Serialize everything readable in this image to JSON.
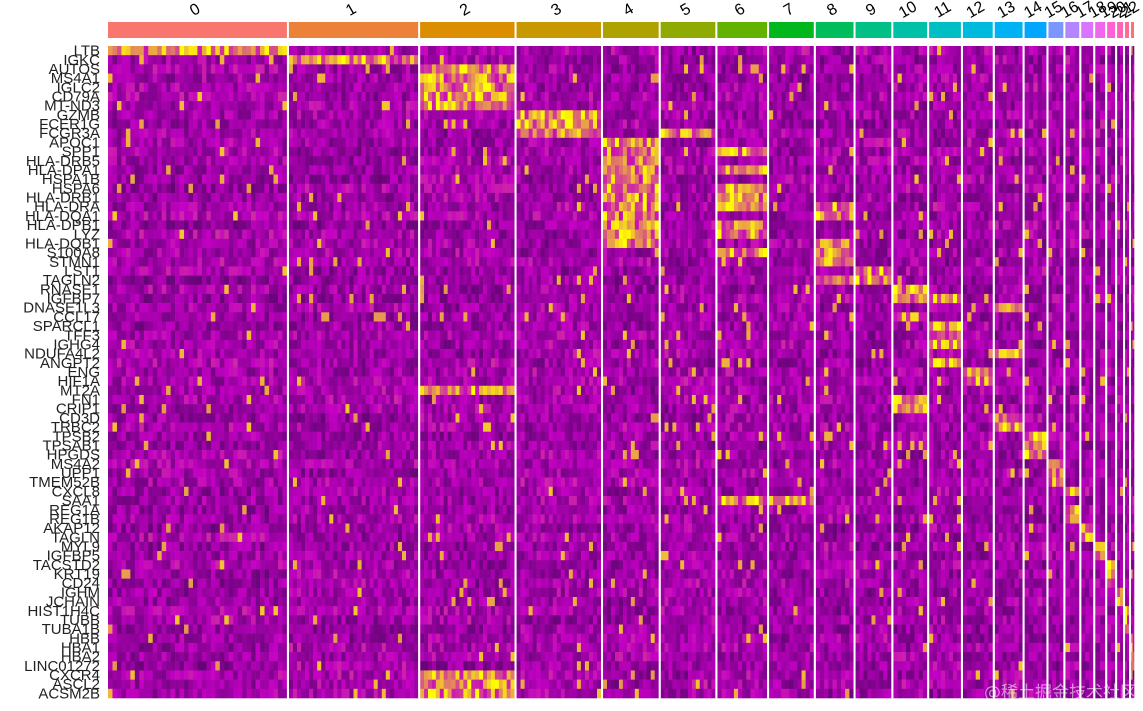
{
  "chart_data": {
    "type": "heatmap",
    "clusters": [
      {
        "label": "0",
        "cells": 180,
        "color": "#F8766D"
      },
      {
        "label": "1",
        "cells": 130,
        "color": "#EC8239"
      },
      {
        "label": "2",
        "cells": 95,
        "color": "#DB8E00"
      },
      {
        "label": "3",
        "cells": 85,
        "color": "#C79800"
      },
      {
        "label": "4",
        "cells": 56,
        "color": "#AEA200"
      },
      {
        "label": "5",
        "cells": 55,
        "color": "#8FAA00"
      },
      {
        "label": "6",
        "cells": 50,
        "color": "#64B200"
      },
      {
        "label": "7",
        "cells": 45,
        "color": "#00B81B"
      },
      {
        "label": "8",
        "cells": 38,
        "color": "#00BD5C"
      },
      {
        "label": "9",
        "cells": 36,
        "color": "#00C085"
      },
      {
        "label": "10",
        "cells": 34,
        "color": "#00C1A7"
      },
      {
        "label": "11",
        "cells": 32,
        "color": "#00BFC4"
      },
      {
        "label": "12",
        "cells": 30,
        "color": "#00BADE"
      },
      {
        "label": "13",
        "cells": 28,
        "color": "#00B2F3"
      },
      {
        "label": "14",
        "cells": 22,
        "color": "#00A6FF"
      },
      {
        "label": "15",
        "cells": 15,
        "color": "#7C96FF"
      },
      {
        "label": "16",
        "cells": 14,
        "color": "#B385FF"
      },
      {
        "label": "17",
        "cells": 12,
        "color": "#D874FD"
      },
      {
        "label": "18",
        "cells": 10,
        "color": "#EF67EB"
      },
      {
        "label": "19",
        "cells": 8,
        "color": "#FD61D3"
      },
      {
        "label": "20",
        "cells": 6,
        "color": "#FF63B6"
      },
      {
        "label": "21",
        "cells": 4,
        "color": "#FF6B94"
      },
      {
        "label": "22",
        "cells": 3,
        "color": "#FF7070"
      }
    ],
    "genes": [
      {
        "name": "LTB",
        "high": [
          0
        ]
      },
      {
        "name": "IGKC",
        "high": [
          1
        ]
      },
      {
        "name": "AUTOS",
        "high": [
          2
        ]
      },
      {
        "name": "MS4A1",
        "high": [
          2
        ]
      },
      {
        "name": "IGLC2",
        "high": [
          2
        ]
      },
      {
        "name": "CD79A",
        "high": [
          2
        ]
      },
      {
        "name": "MT-ND3",
        "high": [
          2
        ]
      },
      {
        "name": "GZMB",
        "high": [
          3
        ]
      },
      {
        "name": "FCER1G",
        "high": [
          3
        ]
      },
      {
        "name": "FCGR3A",
        "high": [
          3,
          5
        ]
      },
      {
        "name": "APOC1",
        "high": [
          4
        ]
      },
      {
        "name": "SPP1",
        "high": [
          4,
          6
        ]
      },
      {
        "name": "HLA-DRB5",
        "high": [
          4
        ]
      },
      {
        "name": "HLA-DPA1",
        "high": [
          4,
          6
        ]
      },
      {
        "name": "HSPA1B",
        "high": [
          4
        ]
      },
      {
        "name": "HSPA6",
        "high": [
          4,
          6
        ]
      },
      {
        "name": "HLA-DRB1",
        "high": [
          4,
          6
        ]
      },
      {
        "name": "HLA-DRA",
        "high": [
          4,
          6,
          8
        ]
      },
      {
        "name": "HLA-DQA1",
        "high": [
          4,
          8
        ]
      },
      {
        "name": "HLA-DPB1",
        "high": [
          4,
          6
        ]
      },
      {
        "name": "LYZ",
        "high": [
          4,
          6
        ]
      },
      {
        "name": "HLA-DQB1",
        "high": [
          4,
          8
        ]
      },
      {
        "name": "S100A8",
        "high": [
          6,
          8
        ]
      },
      {
        "name": "STMN1",
        "high": [
          8
        ]
      },
      {
        "name": "LST1",
        "high": [
          9
        ]
      },
      {
        "name": "TAGLN2",
        "high": [
          8,
          9
        ]
      },
      {
        "name": "RNASE1",
        "high": [
          10
        ]
      },
      {
        "name": "IGFBP7",
        "high": [
          10,
          11
        ]
      },
      {
        "name": "DNASE1L3",
        "high": [
          13
        ]
      },
      {
        "name": "CCL17",
        "high": [
          10
        ]
      },
      {
        "name": "SPARCL1",
        "high": [
          11
        ]
      },
      {
        "name": "TFF3",
        "high": [
          11
        ]
      },
      {
        "name": "IGHG4",
        "high": [
          11
        ]
      },
      {
        "name": "NDUFA4L2",
        "high": [
          13
        ]
      },
      {
        "name": "ANGPT2",
        "high": [
          11
        ]
      },
      {
        "name": "ENG",
        "high": [
          12
        ]
      },
      {
        "name": "HIF1A",
        "high": [
          12
        ]
      },
      {
        "name": "MT2A",
        "high": [
          2
        ]
      },
      {
        "name": "FN1",
        "high": [
          10
        ]
      },
      {
        "name": "CRIP1",
        "high": [
          10
        ]
      },
      {
        "name": "CD3D",
        "high": [
          13
        ]
      },
      {
        "name": "TRBC2",
        "high": [
          13
        ]
      },
      {
        "name": "TPSB2",
        "high": [
          14
        ]
      },
      {
        "name": "TPSAB1",
        "high": [
          14
        ]
      },
      {
        "name": "HPGDS",
        "high": [
          14
        ]
      },
      {
        "name": "MS4A2",
        "high": [
          15
        ]
      },
      {
        "name": "UPP1",
        "high": [
          15
        ]
      },
      {
        "name": "TMEM52B",
        "high": [
          15
        ]
      },
      {
        "name": "CXCL8",
        "high": [
          16
        ]
      },
      {
        "name": "SAA1",
        "high": [
          6,
          7
        ]
      },
      {
        "name": "REG1A",
        "high": [
          16
        ]
      },
      {
        "name": "REG1B",
        "high": [
          16
        ]
      },
      {
        "name": "AKAP12",
        "high": [
          17
        ]
      },
      {
        "name": "TAGLN",
        "high": [
          17
        ]
      },
      {
        "name": "MYL9",
        "high": [
          18
        ]
      },
      {
        "name": "IGFBP5",
        "high": [
          18
        ]
      },
      {
        "name": "TACSTD2",
        "high": [
          19
        ]
      },
      {
        "name": "KRT19",
        "high": [
          19
        ]
      },
      {
        "name": "CD24",
        "high": [
          19
        ]
      },
      {
        "name": "IGHM",
        "high": [
          20
        ]
      },
      {
        "name": "JCHAIN",
        "high": [
          20
        ]
      },
      {
        "name": "HIST1H4C",
        "high": [
          21
        ]
      },
      {
        "name": "TUBB",
        "high": [
          21
        ]
      },
      {
        "name": "TUBA1B",
        "high": [
          21
        ]
      },
      {
        "name": "HBB",
        "high": [
          22
        ]
      },
      {
        "name": "HBA1",
        "high": [
          22
        ]
      },
      {
        "name": "HBA2",
        "high": [
          22
        ]
      },
      {
        "name": "LINC01272",
        "high": [
          22
        ]
      },
      {
        "name": "CXCR4",
        "high": [
          2
        ]
      },
      {
        "name": "ASCL2",
        "high": [
          2
        ]
      },
      {
        "name": "ACSM2B",
        "high": [
          2
        ]
      }
    ],
    "color_scale": {
      "low": "#3A0653",
      "mid": "#C400C4",
      "high": "#FFFF00"
    },
    "legend": "none"
  },
  "watermark": "@稀土掘金技术社区"
}
